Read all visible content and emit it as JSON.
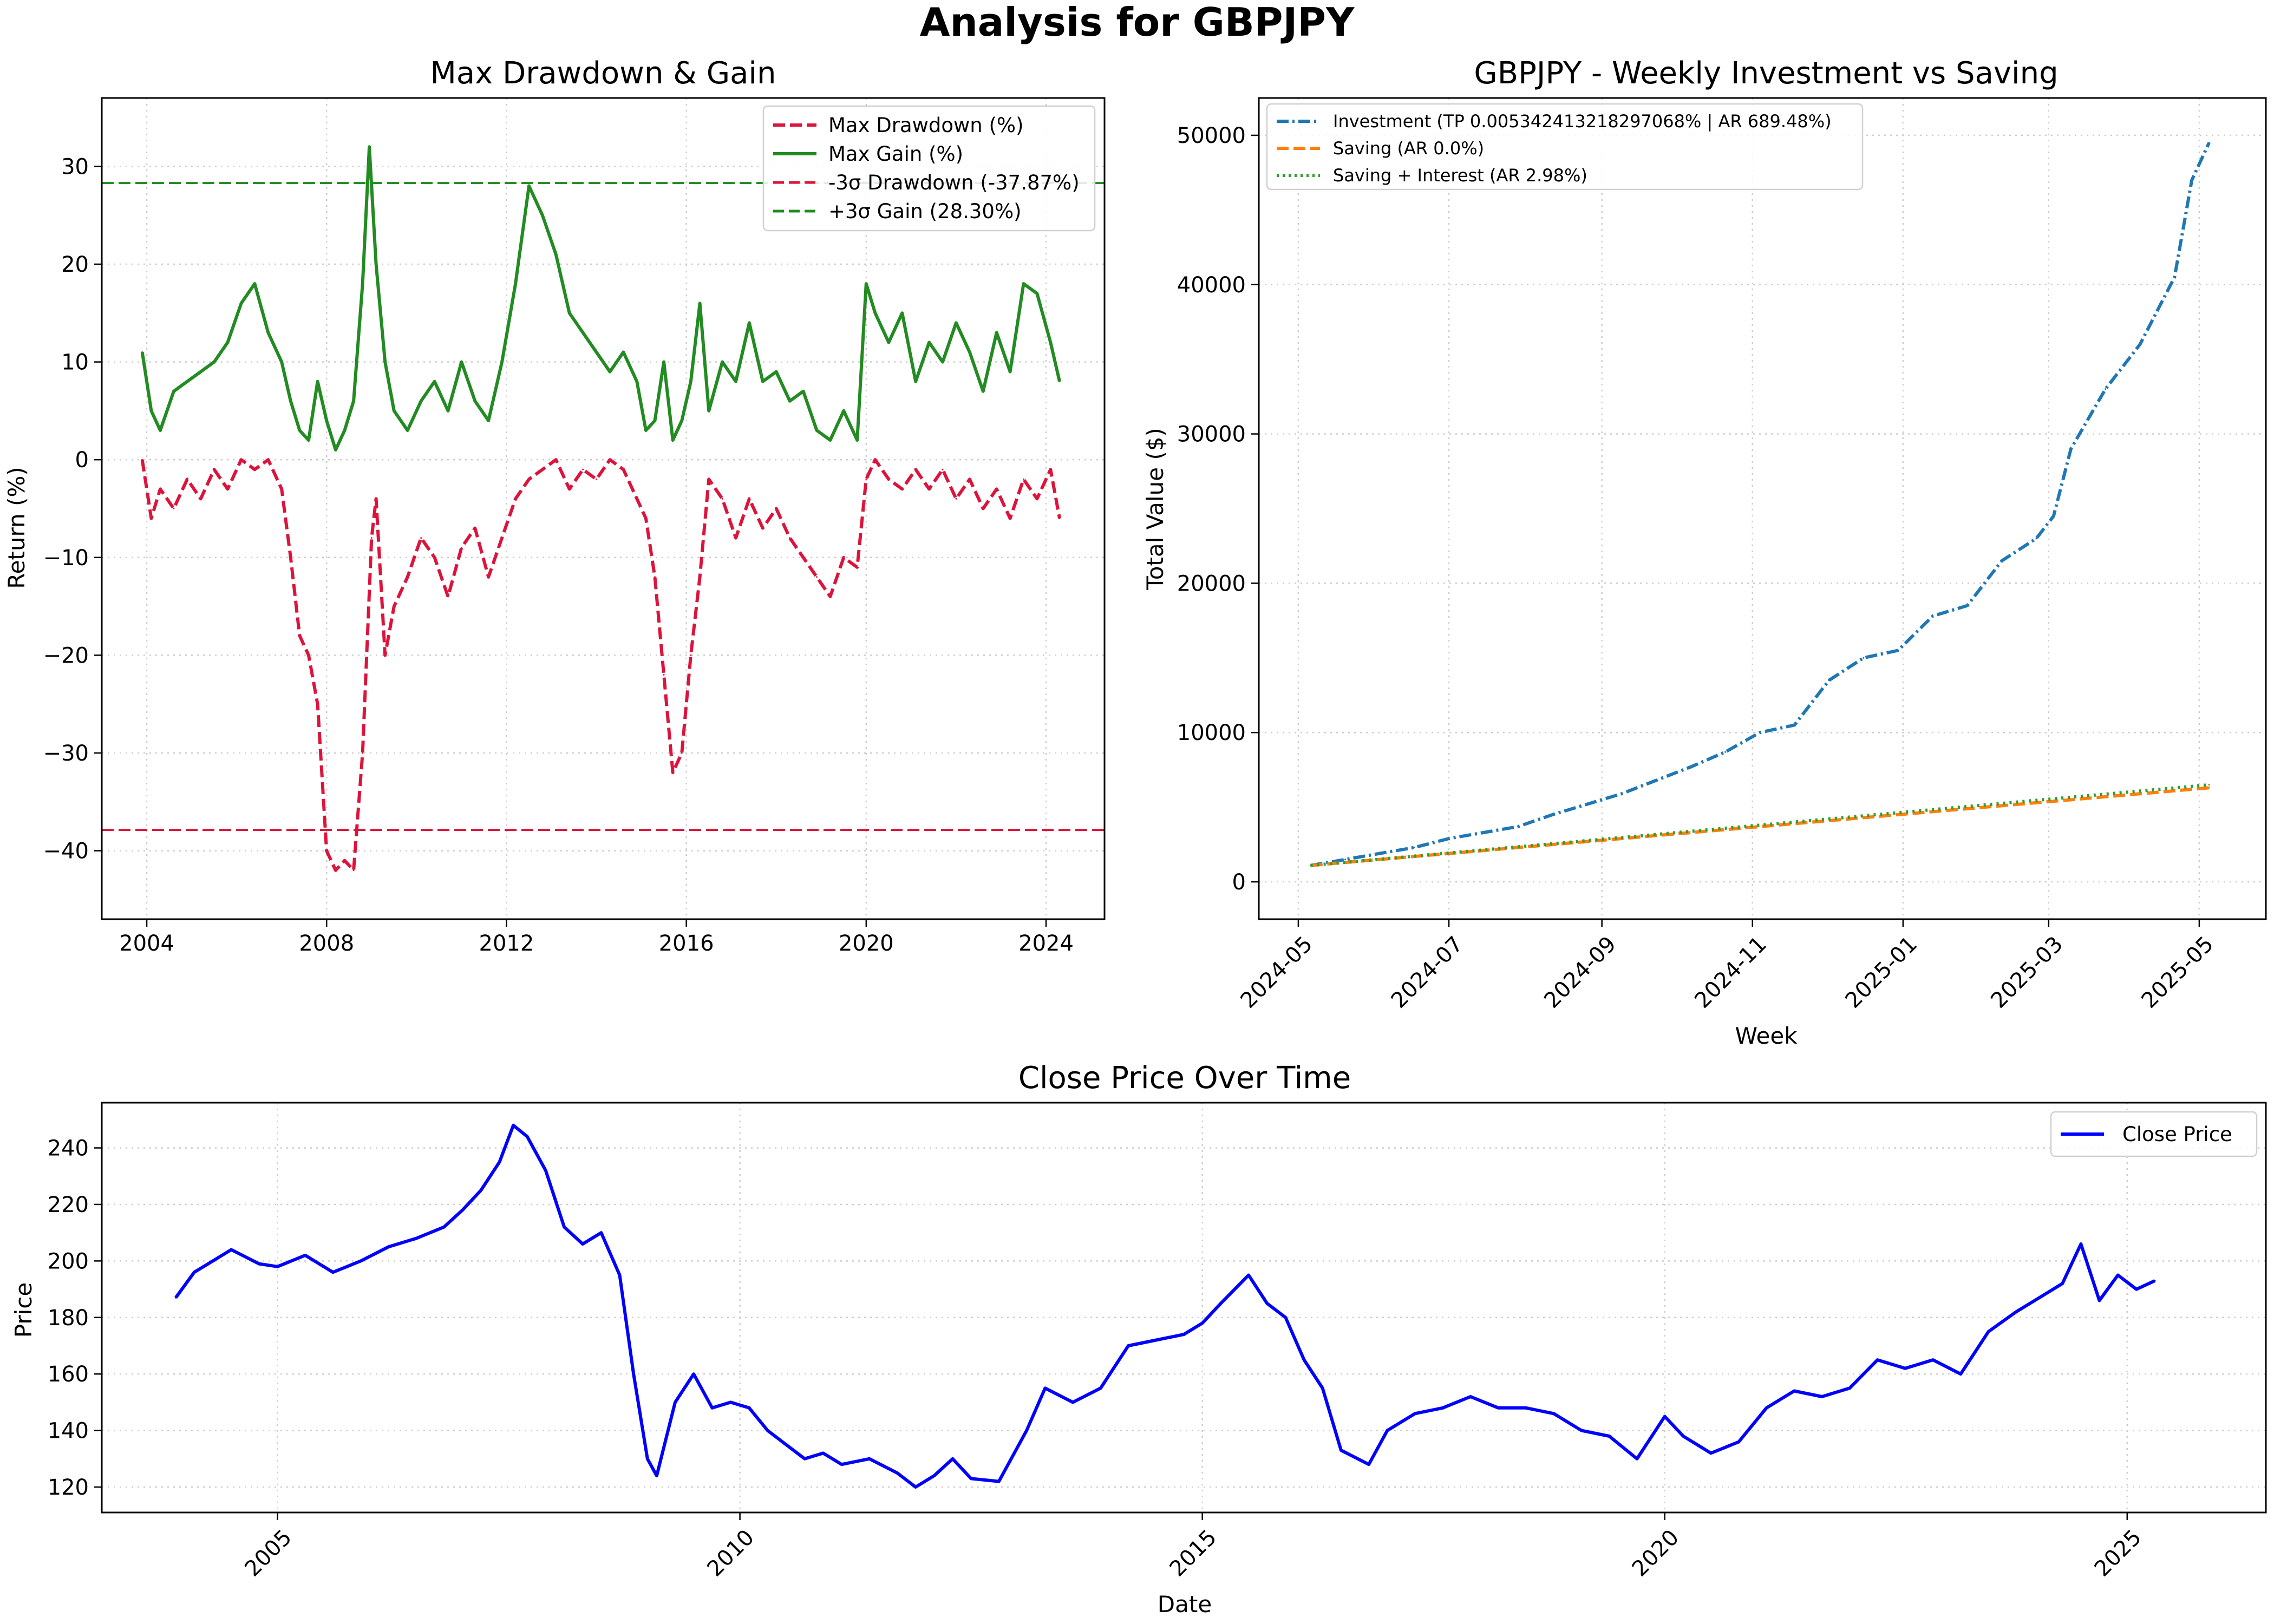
{
  "figure": {
    "suptitle": "Analysis for GBPJPY"
  },
  "colors": {
    "drawdown": "#dc143c",
    "gain": "#228b22",
    "investment": "#1f77b4",
    "saving": "#ff7f0e",
    "saving_interest": "#2ca02c",
    "close": "#0000ff"
  },
  "chart_data": [
    {
      "id": "drawdown_gain",
      "type": "line",
      "title": "Max Drawdown & Gain",
      "xlabel": "",
      "ylabel": "Return (%)",
      "xlim": [
        2003.0,
        2025.3
      ],
      "ylim": [
        -47,
        37
      ],
      "xticks": [
        2004,
        2008,
        2012,
        2016,
        2020,
        2024
      ],
      "yticks": [
        -40,
        -30,
        -20,
        -10,
        0,
        10,
        20,
        30
      ],
      "grid": true,
      "legend_position": "top-right",
      "hlines": [
        {
          "name": "-3σ Drawdown (-37.87%)",
          "y": -37.87,
          "color": "#dc143c",
          "style": "dashed"
        },
        {
          "name": "+3σ Gain (28.30%)",
          "y": 28.3,
          "color": "#228b22",
          "style": "dashed"
        }
      ],
      "series": [
        {
          "name": "Max Drawdown (%)",
          "color": "#dc143c",
          "style": "dashed",
          "x": [
            2003.9,
            2004.1,
            2004.3,
            2004.6,
            2004.9,
            2005.2,
            2005.5,
            2005.8,
            2006.1,
            2006.4,
            2006.7,
            2007.0,
            2007.2,
            2007.4,
            2007.6,
            2007.8,
            2008.0,
            2008.2,
            2008.4,
            2008.6,
            2008.8,
            2009.0,
            2009.1,
            2009.3,
            2009.5,
            2009.8,
            2010.1,
            2010.4,
            2010.7,
            2011.0,
            2011.3,
            2011.6,
            2011.9,
            2012.2,
            2012.5,
            2012.8,
            2013.1,
            2013.4,
            2013.7,
            2014.0,
            2014.3,
            2014.6,
            2014.9,
            2015.1,
            2015.3,
            2015.5,
            2015.7,
            2015.9,
            2016.1,
            2016.3,
            2016.5,
            2016.8,
            2017.1,
            2017.4,
            2017.7,
            2018.0,
            2018.3,
            2018.6,
            2018.9,
            2019.2,
            2019.5,
            2019.8,
            2020.0,
            2020.2,
            2020.5,
            2020.8,
            2021.1,
            2021.4,
            2021.7,
            2022.0,
            2022.3,
            2022.6,
            2022.9,
            2023.2,
            2023.5,
            2023.8,
            2024.1,
            2024.3
          ],
          "values": [
            0,
            -6,
            -3,
            -5,
            -2,
            -4,
            -1,
            -3,
            0,
            -1,
            0,
            -3,
            -10,
            -18,
            -20,
            -25,
            -40,
            -42,
            -41,
            -42,
            -30,
            -8,
            -4,
            -20,
            -15,
            -12,
            -8,
            -10,
            -14,
            -9,
            -7,
            -12,
            -8,
            -4,
            -2,
            -1,
            0,
            -3,
            -1,
            -2,
            0,
            -1,
            -4,
            -6,
            -12,
            -22,
            -32,
            -30,
            -20,
            -12,
            -2,
            -4,
            -8,
            -4,
            -7,
            -5,
            -8,
            -10,
            -12,
            -14,
            -10,
            -11,
            -2,
            0,
            -2,
            -3,
            -1,
            -3,
            -1,
            -4,
            -2,
            -5,
            -3,
            -6,
            -2,
            -4,
            -1,
            -6
          ]
        },
        {
          "name": "Max Gain (%)",
          "color": "#228b22",
          "style": "solid",
          "x": [
            2003.9,
            2004.1,
            2004.3,
            2004.6,
            2004.9,
            2005.2,
            2005.5,
            2005.8,
            2006.1,
            2006.4,
            2006.7,
            2007.0,
            2007.2,
            2007.4,
            2007.6,
            2007.8,
            2008.0,
            2008.2,
            2008.4,
            2008.6,
            2008.8,
            2008.95,
            2009.1,
            2009.3,
            2009.5,
            2009.8,
            2010.1,
            2010.4,
            2010.7,
            2011.0,
            2011.3,
            2011.6,
            2011.9,
            2012.2,
            2012.5,
            2012.8,
            2013.1,
            2013.4,
            2013.7,
            2014.0,
            2014.3,
            2014.6,
            2014.9,
            2015.1,
            2015.3,
            2015.5,
            2015.7,
            2015.9,
            2016.1,
            2016.3,
            2016.5,
            2016.8,
            2017.1,
            2017.4,
            2017.7,
            2018.0,
            2018.3,
            2018.6,
            2018.9,
            2019.2,
            2019.5,
            2019.8,
            2020.0,
            2020.2,
            2020.5,
            2020.8,
            2021.1,
            2021.4,
            2021.7,
            2022.0,
            2022.3,
            2022.6,
            2022.9,
            2023.2,
            2023.5,
            2023.8,
            2024.1,
            2024.3
          ],
          "values": [
            11,
            5,
            3,
            7,
            8,
            9,
            10,
            12,
            16,
            18,
            13,
            10,
            6,
            3,
            2,
            8,
            4,
            1,
            3,
            6,
            18,
            32,
            20,
            10,
            5,
            3,
            6,
            8,
            5,
            10,
            6,
            4,
            10,
            18,
            28,
            25,
            21,
            15,
            13,
            11,
            9,
            11,
            8,
            3,
            4,
            10,
            2,
            4,
            8,
            16,
            5,
            10,
            8,
            14,
            8,
            9,
            6,
            7,
            3,
            2,
            5,
            2,
            18,
            15,
            12,
            15,
            8,
            12,
            10,
            14,
            11,
            7,
            13,
            9,
            18,
            17,
            12,
            8
          ]
        }
      ]
    },
    {
      "id": "weekly_invest",
      "type": "line",
      "title": "GBPJPY - Weekly Investment vs Saving",
      "xlabel": "Week",
      "ylabel": "Total Value ($)",
      "x_unit": "date",
      "xlim": [
        "2024-04-15",
        "2025-05-28"
      ],
      "ylim": [
        -2500,
        52500
      ],
      "xticks": [
        "2024-05",
        "2024-07",
        "2024-09",
        "2024-11",
        "2025-01",
        "2025-03",
        "2025-05"
      ],
      "yticks": [
        0,
        10000,
        20000,
        30000,
        40000,
        50000
      ],
      "grid": true,
      "legend_position": "top-left",
      "series": [
        {
          "name": "Investment (TP 0.005342413218297068% | AR 689.48%)",
          "color": "#1f77b4",
          "style": "dashdot",
          "x": [
            "2024-05-06",
            "2024-05-20",
            "2024-06-03",
            "2024-06-17",
            "2024-07-01",
            "2024-07-15",
            "2024-07-29",
            "2024-08-12",
            "2024-08-26",
            "2024-09-09",
            "2024-09-23",
            "2024-10-07",
            "2024-10-21",
            "2024-11-04",
            "2024-11-18",
            "2024-12-02",
            "2024-12-16",
            "2024-12-30",
            "2025-01-13",
            "2025-01-27",
            "2025-02-10",
            "2025-02-24",
            "2025-03-03",
            "2025-03-10",
            "2025-03-24",
            "2025-04-07",
            "2025-04-21",
            "2025-04-28",
            "2025-05-05"
          ],
          "values": [
            1100,
            1500,
            1900,
            2300,
            2900,
            3300,
            3700,
            4500,
            5200,
            5900,
            6800,
            7700,
            8700,
            10000,
            10500,
            13500,
            15000,
            15500,
            17800,
            18500,
            21500,
            23000,
            24500,
            29000,
            33000,
            36000,
            40500,
            47000,
            49500
          ]
        },
        {
          "name": "Saving (AR 0.0%)",
          "color": "#ff7f0e",
          "style": "dashed",
          "x": [
            "2024-05-06",
            "2025-05-05"
          ],
          "values": [
            1100,
            6300
          ]
        },
        {
          "name": "Saving + Interest (AR 2.98%)",
          "color": "#2ca02c",
          "style": "dotted",
          "x": [
            "2024-05-06",
            "2025-05-05"
          ],
          "values": [
            1100,
            6500
          ]
        }
      ]
    },
    {
      "id": "close_price",
      "type": "line",
      "title": "Close Price Over Time",
      "xlabel": "Date",
      "ylabel": "Price",
      "xlim": [
        2003.1,
        2026.5
      ],
      "ylim": [
        111,
        256
      ],
      "xticks": [
        2005,
        2010,
        2015,
        2020,
        2025
      ],
      "yticks": [
        120,
        140,
        160,
        180,
        200,
        220,
        240
      ],
      "grid": true,
      "legend_position": "top-right",
      "series": [
        {
          "name": "Close Price",
          "color": "#0000ff",
          "style": "solid",
          "x": [
            2003.9,
            2004.1,
            2004.3,
            2004.5,
            2004.8,
            2005.0,
            2005.3,
            2005.6,
            2005.9,
            2006.2,
            2006.5,
            2006.8,
            2007.0,
            2007.2,
            2007.4,
            2007.55,
            2007.7,
            2007.9,
            2008.1,
            2008.3,
            2008.5,
            2008.7,
            2008.85,
            2009.0,
            2009.1,
            2009.3,
            2009.5,
            2009.7,
            2009.9,
            2010.1,
            2010.3,
            2010.5,
            2010.7,
            2010.9,
            2011.1,
            2011.4,
            2011.7,
            2011.9,
            2012.1,
            2012.3,
            2012.5,
            2012.8,
            2013.1,
            2013.3,
            2013.6,
            2013.9,
            2014.2,
            2014.5,
            2014.8,
            2015.0,
            2015.2,
            2015.5,
            2015.7,
            2015.9,
            2016.1,
            2016.3,
            2016.5,
            2016.8,
            2017.0,
            2017.3,
            2017.6,
            2017.9,
            2018.2,
            2018.5,
            2018.8,
            2019.1,
            2019.4,
            2019.7,
            2020.0,
            2020.2,
            2020.5,
            2020.8,
            2021.1,
            2021.4,
            2021.7,
            2022.0,
            2022.3,
            2022.6,
            2022.9,
            2023.2,
            2023.5,
            2023.8,
            2024.1,
            2024.3,
            2024.5,
            2024.7,
            2024.9,
            2025.1,
            2025.3
          ],
          "values": [
            187,
            196,
            200,
            204,
            199,
            198,
            202,
            196,
            200,
            205,
            208,
            212,
            218,
            225,
            235,
            248,
            244,
            232,
            212,
            206,
            210,
            195,
            160,
            130,
            124,
            150,
            160,
            148,
            150,
            148,
            140,
            135,
            130,
            132,
            128,
            130,
            125,
            120,
            124,
            130,
            123,
            122,
            140,
            155,
            150,
            155,
            170,
            172,
            174,
            178,
            185,
            195,
            185,
            180,
            165,
            155,
            133,
            128,
            140,
            146,
            148,
            152,
            148,
            148,
            146,
            140,
            138,
            130,
            145,
            138,
            132,
            136,
            148,
            154,
            152,
            155,
            165,
            162,
            165,
            160,
            175,
            182,
            188,
            192,
            206,
            186,
            195,
            190,
            193
          ]
        }
      ]
    }
  ]
}
